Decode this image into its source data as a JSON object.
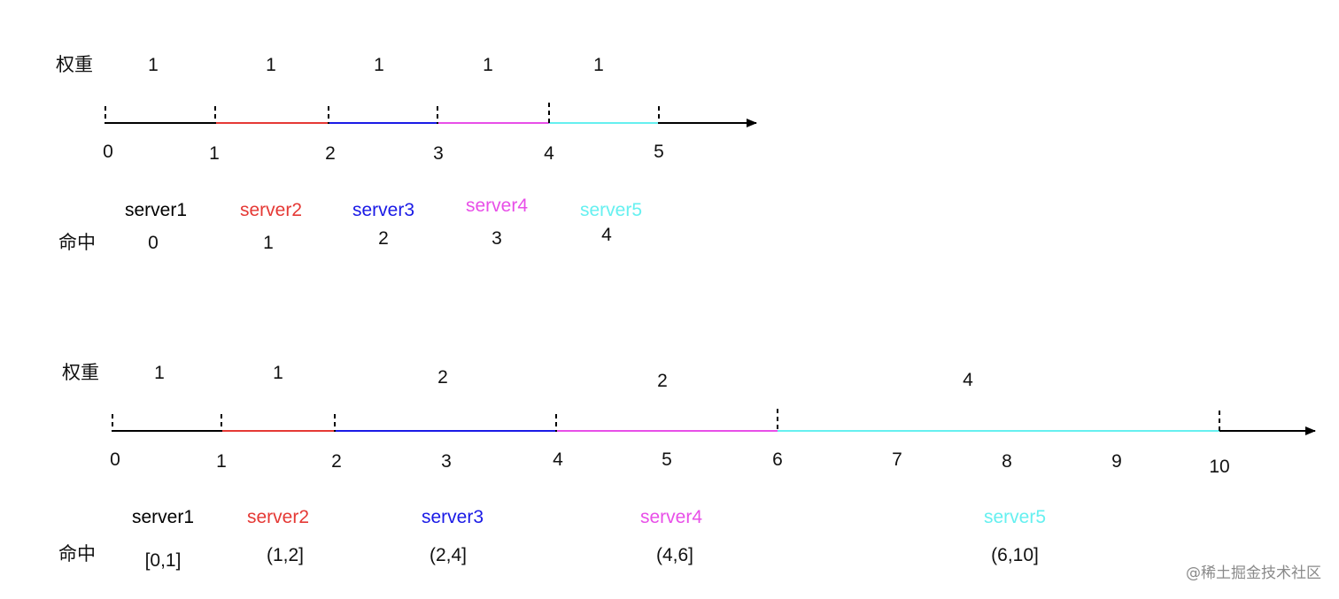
{
  "colors": {
    "axis": "#000000",
    "server1": "#000000",
    "server2": "#e53935",
    "server3": "#1a1ae6",
    "server4": "#e84fe8",
    "server5": "#66f0f0"
  },
  "diagram1": {
    "weight_label": "权重",
    "hit_label": "命中",
    "weights": [
      "1",
      "1",
      "1",
      "1",
      "1"
    ],
    "ticks": [
      "0",
      "1",
      "2",
      "3",
      "4",
      "5"
    ],
    "segments": [
      {
        "server": "server1",
        "hit": "0"
      },
      {
        "server": "server2",
        "hit": "1"
      },
      {
        "server": "server3",
        "hit": "2"
      },
      {
        "server": "server4",
        "hit": "3"
      },
      {
        "server": "server5",
        "hit": "4"
      }
    ]
  },
  "diagram2": {
    "weight_label": "权重",
    "hit_label": "命中",
    "weights": [
      "1",
      "1",
      "2",
      "2",
      "4"
    ],
    "ticks": [
      "0",
      "1",
      "2",
      "3",
      "4",
      "5",
      "6",
      "7",
      "8",
      "9",
      "10"
    ],
    "segments": [
      {
        "server": "server1",
        "hit": "[0,1]"
      },
      {
        "server": "server2",
        "hit": "(1,2]"
      },
      {
        "server": "server3",
        "hit": "(2,4]"
      },
      {
        "server": "server4",
        "hit": "(4,6]"
      },
      {
        "server": "server5",
        "hit": "(6,10]"
      }
    ]
  },
  "watermark": "@稀土掘金技术社区"
}
